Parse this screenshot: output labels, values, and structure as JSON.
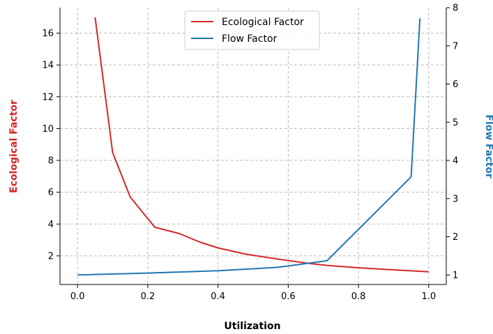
{
  "chart_data": {
    "type": "line",
    "xlabel": "Utilization",
    "ylabel_left": "Ecological Factor",
    "ylabel_right": "Flow Factor",
    "xlim": [
      -0.05,
      1.05
    ],
    "ylim_left": [
      0.2,
      17.6
    ],
    "ylim_right": [
      0.75,
      8
    ],
    "x_ticks": [
      "0.0",
      "0.2",
      "0.4",
      "0.6",
      "0.8",
      "1.0"
    ],
    "y_left_ticks": [
      "2",
      "4",
      "6",
      "8",
      "10",
      "12",
      "14",
      "16"
    ],
    "y_right_ticks": [
      "1",
      "2",
      "3",
      "4",
      "5",
      "6",
      "7",
      "8"
    ],
    "grid": true,
    "legend_position": "top-center",
    "series": [
      {
        "name": "Ecological Factor",
        "axis": "left",
        "color": "#d62728",
        "x": [
          0.05,
          0.1,
          0.15,
          0.22,
          0.29,
          0.35,
          0.4,
          0.48,
          0.57,
          0.65,
          0.71,
          0.8,
          0.9,
          1.0
        ],
        "y": [
          17.0,
          8.5,
          5.7,
          3.8,
          3.4,
          2.85,
          2.5,
          2.1,
          1.8,
          1.55,
          1.4,
          1.25,
          1.12,
          1.0
        ]
      },
      {
        "name": "Flow Factor",
        "axis": "right",
        "color": "#1f77b4",
        "x": [
          0.0,
          0.2,
          0.4,
          0.57,
          0.71,
          0.95,
          0.975
        ],
        "y": [
          1.0,
          1.05,
          1.11,
          1.2,
          1.37,
          3.57,
          7.72
        ]
      }
    ]
  }
}
